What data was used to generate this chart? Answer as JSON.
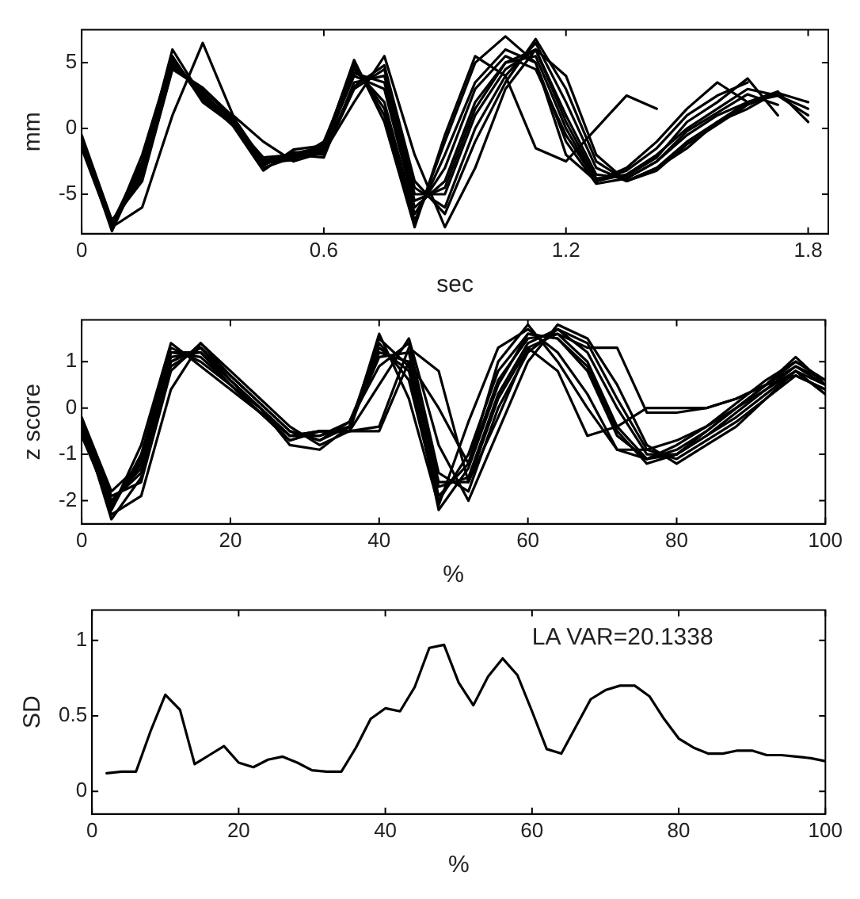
{
  "chart_data": [
    {
      "type": "line",
      "xlabel": "sec",
      "ylabel": "mm",
      "xlim": [
        0,
        1.85
      ],
      "ylim": [
        -8,
        7.5
      ],
      "xticks": [
        0,
        0.6,
        1.2,
        1.8
      ],
      "yticks": [
        -5,
        0,
        5
      ],
      "marker": "none",
      "line_style": "solid",
      "x": [
        0,
        0.075,
        0.15,
        0.225,
        0.3,
        0.375,
        0.45,
        0.525,
        0.6,
        0.675,
        0.75,
        0.825,
        0.9,
        0.975,
        1.05,
        1.125,
        1.2,
        1.275,
        1.35,
        1.425,
        1.5,
        1.575,
        1.65,
        1.725,
        1.8
      ],
      "series": [
        {
          "color": "#000000",
          "values": [
            -1,
            -7.3,
            -3,
            5,
            2.5,
            0.5,
            -2.5,
            -2,
            -1.5,
            4,
            3,
            -6,
            -4,
            2,
            5,
            5.5,
            0,
            -4,
            -3.5,
            -2,
            0,
            1.5,
            3,
            2.5,
            1
          ]
        },
        {
          "color": "#000000",
          "values": [
            -1.5,
            -7.6,
            -2,
            5.5,
            2,
            0.3,
            -3,
            -2.2,
            -1.2,
            5,
            1,
            -7,
            -2,
            3.5,
            6,
            5,
            -1,
            -4.2,
            -3.8,
            -2.5,
            -0.5,
            1,
            2,
            2.8,
            0.5
          ]
        },
        {
          "color": "#000000",
          "values": [
            -0.5,
            -7,
            -4,
            4.5,
            3,
            0.8,
            -2.8,
            -1.8,
            -2,
            3,
            4.5,
            -4.5,
            -6,
            0,
            4,
            6.5,
            2,
            -3,
            -4,
            -3,
            -1,
            0.5,
            1.5,
            2.8,
            null
          ]
        },
        {
          "color": "#000000",
          "values": [
            -1,
            -7.5,
            -6,
            1,
            6.5,
            1,
            -1,
            -2.5,
            -1.8,
            2,
            5.5,
            -2,
            -7.5,
            -3,
            3,
            6,
            4,
            -2,
            -4,
            -3,
            -1.5,
            0.5,
            2,
            2.5,
            1.5
          ]
        },
        {
          "color": "#000000",
          "values": [
            -1.2,
            -7.2,
            -2.5,
            5.2,
            2.2,
            0.6,
            -2.6,
            -2.4,
            -1,
            4.5,
            2,
            -6.5,
            -3,
            3,
            5.5,
            4.5,
            -0.5,
            -4,
            -3.2,
            -1.5,
            1,
            2.5,
            3.5,
            null,
            null
          ]
        },
        {
          "color": "#000000",
          "values": [
            -0.8,
            -7.4,
            -3.5,
            4.8,
            2.8,
            0.4,
            -2.2,
            -2,
            -2.2,
            3.5,
            4,
            -5,
            -5,
            1,
            4.5,
            6,
            1,
            -3.5,
            -3.8,
            -2.5,
            -0.2,
            1.2,
            2.6,
            1.8,
            null
          ]
        },
        {
          "color": "#000000",
          "values": [
            -1,
            -7.8,
            -2.8,
            6,
            2.3,
            0.2,
            -3.2,
            -1.6,
            -1.3,
            4.8,
            1.5,
            -7.2,
            -1,
            5,
            7,
            5,
            -2,
            -4,
            -3,
            -1,
            1.5,
            3.5,
            2,
            null,
            null
          ]
        },
        {
          "color": "#000000",
          "values": [
            -1.3,
            -7.1,
            -3.2,
            5,
            2.6,
            0.7,
            -2.4,
            -2.1,
            -1.6,
            4.2,
            3.5,
            -5.5,
            -4.5,
            1.5,
            5,
            6,
            0.5,
            -3.8,
            -3.6,
            -2.2,
            0.5,
            2,
            3.8,
            1,
            null
          ]
        },
        {
          "color": "#000000",
          "values": [
            -1,
            -7.5,
            -2.6,
            5.3,
            2.4,
            0.4,
            -2.7,
            -1.9,
            -1.4,
            5.2,
            0.5,
            -7.5,
            -0.5,
            5.5,
            4,
            -1.5,
            -2.5,
            0,
            2.5,
            1.5,
            null,
            null,
            null,
            null,
            null
          ]
        },
        {
          "color": "#000000",
          "values": [
            -0.7,
            -7,
            -3.8,
            4.6,
            3.1,
            0.9,
            -2.5,
            -2.3,
            -1.7,
            3.2,
            4.8,
            -4,
            -6.5,
            -1,
            3.5,
            6.8,
            3,
            -2.5,
            -4,
            -3.2,
            -1.2,
            0.3,
            1.8,
            2.7,
            2
          ]
        }
      ]
    },
    {
      "type": "line",
      "xlabel": "%",
      "ylabel": "z score",
      "xlim": [
        0,
        100
      ],
      "ylim": [
        -2.5,
        1.9
      ],
      "xticks": [
        0,
        20,
        40,
        60,
        80,
        100
      ],
      "yticks": [
        -2,
        -1,
        0,
        1
      ],
      "marker": "none",
      "line_style": "solid",
      "x": [
        0,
        4,
        8,
        12,
        16,
        20,
        24,
        28,
        32,
        36,
        40,
        44,
        48,
        52,
        56,
        60,
        64,
        68,
        72,
        76,
        80,
        84,
        88,
        92,
        96,
        100
      ],
      "series": [
        {
          "color": "#000000",
          "values": [
            -0.4,
            -2.0,
            -1.3,
            1.1,
            1.2,
            0.6,
            0.0,
            -0.6,
            -0.6,
            -0.4,
            1.3,
            0.8,
            -1.9,
            -1.2,
            0.6,
            1.5,
            1.6,
            1.0,
            -0.4,
            -1.1,
            -1.0,
            -0.6,
            -0.1,
            0.4,
            0.9,
            0.5
          ]
        },
        {
          "color": "#000000",
          "values": [
            -0.5,
            -2.2,
            -0.8,
            1.4,
            0.9,
            0.4,
            -0.1,
            -0.7,
            -0.5,
            -0.5,
            1.6,
            0.2,
            -2.1,
            -0.3,
            1.3,
            1.7,
            1.2,
            0.3,
            -0.9,
            -1.1,
            -0.8,
            -0.4,
            0.1,
            0.6,
            1.0,
            0.6
          ]
        },
        {
          "color": "#000000",
          "values": [
            -0.3,
            -1.9,
            -1.6,
            0.8,
            1.4,
            0.7,
            0.1,
            -0.5,
            -0.7,
            -0.3,
            0.9,
            1.4,
            -1.4,
            -1.8,
            0.0,
            1.2,
            1.7,
            1.4,
            0.2,
            -0.9,
            -1.1,
            -0.7,
            -0.3,
            0.2,
            0.7,
            0.4
          ]
        },
        {
          "color": "#000000",
          "values": [
            -0.4,
            -2.3,
            -1.9,
            0.4,
            1.4,
            0.8,
            0.2,
            -0.4,
            -0.8,
            -0.5,
            0.5,
            1.5,
            -0.8,
            -2.0,
            -0.5,
            1.0,
            1.8,
            1.5,
            0.5,
            -0.8,
            -1.2,
            -0.8,
            -0.4,
            0.2,
            0.8,
            0.3
          ]
        },
        {
          "color": "#000000",
          "values": [
            -0.6,
            -2.1,
            -1.1,
            1.2,
            1.1,
            0.5,
            -0.1,
            -0.6,
            -0.5,
            -0.5,
            1.4,
            0.6,
            -2.0,
            -1.0,
            0.8,
            1.6,
            1.5,
            0.8,
            -0.6,
            -1.1,
            -0.9,
            -0.5,
            0.0,
            0.5,
            1.0,
            0.6
          ]
        },
        {
          "color": "#000000",
          "values": [
            -0.2,
            -1.8,
            -1.2,
            1.0,
            1.3,
            0.6,
            0.0,
            -0.6,
            -0.6,
            -0.3,
            1.2,
            1.0,
            -1.7,
            -1.5,
            0.3,
            1.4,
            1.7,
            1.2,
            0.0,
            -1.0,
            -1.0,
            -0.6,
            -0.2,
            0.3,
            0.8,
            0.5
          ]
        },
        {
          "color": "#000000",
          "values": [
            -0.5,
            -2.2,
            -1.0,
            1.3,
            1.0,
            0.5,
            -0.1,
            -0.7,
            -0.5,
            -0.5,
            -0.4,
            1.3,
            0.8,
            -1.6,
            -0.2,
            1.3,
            0.8,
            -0.6,
            -0.4,
            0.0,
            0.0,
            0.0,
            0.2,
            0.5,
            0.7,
            0.4
          ]
        },
        {
          "color": "#000000",
          "values": [
            -0.4,
            -2.0,
            -1.4,
            1.0,
            1.3,
            0.7,
            0.1,
            -0.5,
            -0.7,
            -0.4,
            1.1,
            1.2,
            -1.6,
            -1.6,
            0.2,
            1.3,
            1.6,
            1.3,
            1.3,
            -0.1,
            -0.1,
            0.0,
            0.2,
            0.5,
            0.9,
            0.6
          ]
        },
        {
          "color": "#000000",
          "values": [
            -0.3,
            -2.4,
            -1.5,
            0.9,
            1.3,
            0.6,
            0.0,
            -0.8,
            -0.9,
            -0.4,
            1.5,
            0.9,
            -2.2,
            -1.3,
            0.5,
            1.6,
            1.5,
            0.9,
            -0.5,
            -1.2,
            -1.0,
            -0.5,
            0.0,
            0.5,
            1.1,
            0.5
          ]
        },
        {
          "color": "#000000",
          "values": [
            -0.5,
            -2.1,
            -1.2,
            1.2,
            1.2,
            0.5,
            0.0,
            -0.6,
            -0.5,
            -0.5,
            -0.5,
            1.0,
            0.0,
            -1.2,
            1.0,
            1.8,
            1.0,
            0.0,
            -0.9,
            -0.9,
            -0.7,
            -0.4,
            0.0,
            0.4,
            0.8,
            0.3
          ]
        }
      ]
    },
    {
      "type": "line",
      "xlabel": "%",
      "ylabel": "SD",
      "xlim": [
        0,
        100
      ],
      "ylim": [
        -0.15,
        1.2
      ],
      "xticks": [
        0,
        20,
        40,
        60,
        80,
        100
      ],
      "yticks": [
        0,
        0.5,
        1
      ],
      "marker": "none",
      "line_style": "solid",
      "annotations": [
        "LA VAR=20.1338"
      ],
      "x": [
        2,
        4,
        6,
        8,
        10,
        12,
        14,
        16,
        18,
        20,
        22,
        24,
        26,
        28,
        30,
        32,
        34,
        36,
        38,
        40,
        42,
        44,
        46,
        48,
        50,
        52,
        54,
        56,
        58,
        60,
        62,
        64,
        66,
        68,
        70,
        72,
        74,
        76,
        78,
        80,
        82,
        84,
        86,
        88,
        90,
        92,
        94,
        96,
        98,
        100
      ],
      "series": [
        {
          "color": "#000000",
          "values": [
            0.12,
            0.13,
            0.13,
            0.4,
            0.64,
            0.54,
            0.18,
            0.24,
            0.3,
            0.19,
            0.16,
            0.21,
            0.23,
            0.19,
            0.14,
            0.13,
            0.13,
            0.29,
            0.48,
            0.55,
            0.53,
            0.69,
            0.95,
            0.97,
            0.72,
            0.57,
            0.76,
            0.88,
            0.77,
            0.53,
            0.28,
            0.25,
            0.43,
            0.61,
            0.67,
            0.7,
            0.7,
            0.63,
            0.48,
            0.35,
            0.29,
            0.25,
            0.25,
            0.27,
            0.27,
            0.24,
            0.24,
            0.23,
            0.22,
            0.2
          ]
        }
      ]
    }
  ]
}
